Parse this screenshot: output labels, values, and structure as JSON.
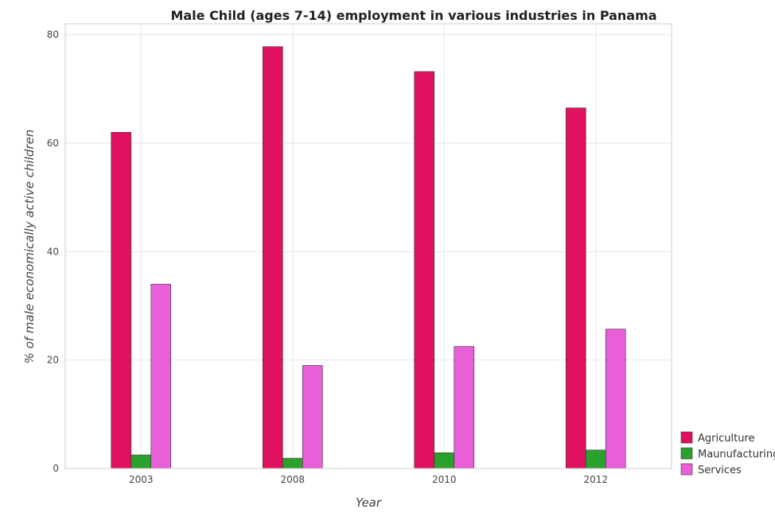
{
  "chart_data": {
    "type": "bar",
    "title": "Male Child (ages 7-14) employment in various industries in Panama",
    "xlabel": "Year",
    "ylabel": "% of male economically active children",
    "categories": [
      "2003",
      "2008",
      "2010",
      "2012"
    ],
    "series": [
      {
        "name": "Agriculture",
        "color": "#e0115f",
        "values": [
          62.0,
          77.8,
          73.2,
          66.5
        ]
      },
      {
        "name": "Maunufacturing",
        "color": "#2ca02c",
        "values": [
          2.5,
          1.9,
          2.9,
          3.4
        ]
      },
      {
        "name": "Services",
        "color": "#e85fd8",
        "values": [
          34.0,
          19.0,
          22.5,
          25.7
        ]
      }
    ],
    "ylim": [
      0,
      82
    ],
    "yticks": [
      0,
      20,
      40,
      60,
      80
    ],
    "grid": true,
    "legend": "bottom-right"
  }
}
